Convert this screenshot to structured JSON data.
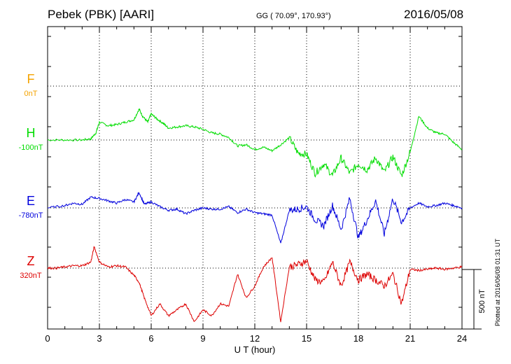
{
  "header": {
    "station": "Pebek (PBK)  [AARI]",
    "coords": "GG ( 70.09°, 170.93°)",
    "date": "2016/05/08"
  },
  "footer": {
    "plotted": "Plotted at 2016/06/08 01:31  UT"
  },
  "scale_bar": {
    "label": "500 nT",
    "value_nt": 500
  },
  "components": [
    {
      "letter": "F",
      "base": "0nT",
      "color": "#f4a300"
    },
    {
      "letter": "H",
      "base": "-100nT",
      "color": "#00dd00"
    },
    {
      "letter": "E",
      "base": "-780nT",
      "color": "#0000dd"
    },
    {
      "letter": "Z",
      "base": "320nT",
      "color": "#dd0000"
    }
  ],
  "chart_data": {
    "type": "line",
    "title": "Pebek (PBK)  [AARI]",
    "xlabel": "U T (hour)",
    "xlim": [
      0,
      24
    ],
    "xticks": [
      0,
      3,
      6,
      9,
      12,
      15,
      18,
      21,
      24
    ],
    "ylabel": "",
    "grid": true,
    "units": "nT",
    "series": [
      {
        "name": "H",
        "baseline_nt": -100,
        "color": "#00dd00",
        "x": [
          0,
          1,
          2,
          2.5,
          2.8,
          3.0,
          3.5,
          4,
          4.5,
          5,
          5.3,
          5.5,
          5.8,
          6,
          6.3,
          6.7,
          7,
          7.5,
          8,
          8.5,
          9,
          9.5,
          10,
          10.5,
          11,
          11.5,
          12,
          12.5,
          13,
          13.5,
          14,
          14.5,
          15,
          15.5,
          16,
          16.5,
          17,
          17.5,
          18,
          18.5,
          19,
          19.5,
          20,
          20.5,
          21,
          21.5,
          22,
          22.5,
          23,
          23.5,
          24
        ],
        "y": [
          0,
          0,
          0,
          10,
          60,
          150,
          120,
          130,
          150,
          170,
          260,
          200,
          150,
          220,
          180,
          140,
          100,
          110,
          120,
          110,
          90,
          60,
          50,
          20,
          -50,
          -40,
          -80,
          -60,
          -90,
          -40,
          20,
          -110,
          -120,
          -280,
          -200,
          -300,
          -150,
          -280,
          -200,
          -250,
          -150,
          -270,
          -140,
          -300,
          -100,
          200,
          100,
          60,
          50,
          -20,
          -80
        ]
      },
      {
        "name": "E",
        "baseline_nt": -780,
        "color": "#0000dd",
        "x": [
          0,
          1,
          1.5,
          2,
          2.5,
          3,
          3.5,
          4,
          4.5,
          5,
          5.3,
          5.6,
          6,
          6.5,
          7,
          7.5,
          8,
          8.5,
          9,
          9.5,
          10,
          10.5,
          11,
          11.5,
          12,
          12.5,
          13,
          13.5,
          14,
          14.5,
          15,
          15.5,
          16,
          16.5,
          17,
          17.5,
          18,
          18.5,
          19,
          19.5,
          20,
          20.5,
          21,
          21.5,
          22,
          22.5,
          23,
          23.5,
          24
        ],
        "y": [
          0,
          20,
          40,
          30,
          90,
          80,
          60,
          40,
          70,
          50,
          130,
          30,
          50,
          10,
          -20,
          -10,
          -50,
          -20,
          0,
          -10,
          -10,
          10,
          -40,
          -10,
          -40,
          -50,
          -60,
          -300,
          -20,
          -10,
          10,
          -100,
          -150,
          20,
          -180,
          80,
          -250,
          -100,
          60,
          -220,
          80,
          -120,
          0,
          40,
          10,
          20,
          40,
          20,
          0
        ]
      },
      {
        "name": "Z",
        "baseline_nt": 320,
        "color": "#dd0000",
        "x": [
          0,
          0.5,
          1,
          1.5,
          2,
          2.5,
          2.7,
          3,
          3.5,
          4,
          4.5,
          5,
          5.3,
          5.6,
          6,
          6.5,
          7,
          7.5,
          8,
          8.5,
          9,
          9.5,
          10,
          10.5,
          11,
          11.5,
          12,
          12.5,
          13,
          13.5,
          14,
          14.5,
          15,
          15.5,
          16,
          16.5,
          17,
          17.5,
          18,
          18.5,
          19,
          19.5,
          20,
          20.5,
          21,
          21.5,
          22,
          22.5,
          23,
          23.5,
          24
        ],
        "y": [
          0,
          0,
          10,
          20,
          20,
          50,
          180,
          50,
          10,
          20,
          10,
          -60,
          -120,
          -250,
          -400,
          -300,
          -400,
          -350,
          -300,
          -450,
          -350,
          -400,
          -300,
          -320,
          -50,
          -250,
          -150,
          10,
          90,
          -450,
          10,
          30,
          60,
          -100,
          -120,
          50,
          -150,
          50,
          -100,
          -50,
          -100,
          -150,
          -50,
          -300,
          -10,
          -20,
          -10,
          0,
          -10,
          0,
          10
        ]
      }
    ]
  }
}
